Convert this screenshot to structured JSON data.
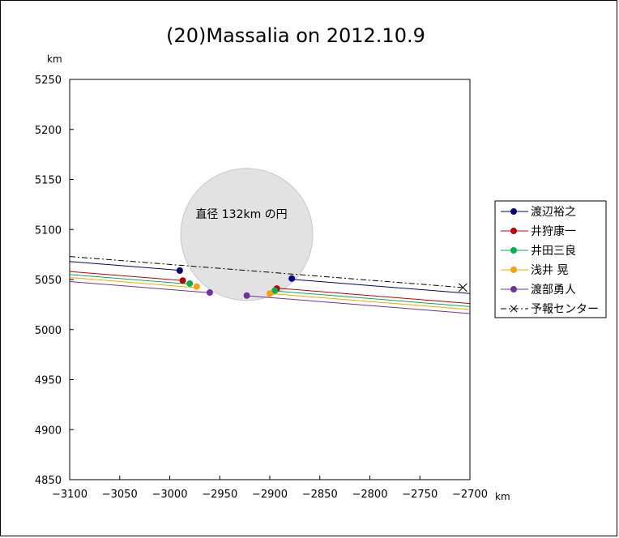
{
  "chart_data": {
    "type": "line",
    "title": "(20)Massalia on 2012.10.9",
    "xunit": "km",
    "yunit": "km",
    "xlim": [
      -3100,
      -2700
    ],
    "ylim": [
      4850,
      5250
    ],
    "xticks": [
      -3100,
      -3050,
      -3000,
      -2950,
      -2900,
      -2850,
      -2800,
      -2750,
      -2700
    ],
    "yticks": [
      4850,
      4900,
      4950,
      5000,
      5050,
      5100,
      5150,
      5200,
      5250
    ],
    "xtick_labels": [
      "−3100",
      "−3050",
      "−3000",
      "−2950",
      "−2900",
      "−2850",
      "−2800",
      "−2750",
      "−2700"
    ],
    "ytick_labels": [
      "4850",
      "4900",
      "4950",
      "5000",
      "5050",
      "5100",
      "5150",
      "5200",
      "5250"
    ],
    "grid": false,
    "legend_position": "right",
    "circle": {
      "label": "直径 132km の円",
      "center": [
        -2923,
        5095
      ],
      "diameter": 132,
      "fill": "#e2e2e2",
      "stroke": "#c8c8c8"
    },
    "series": [
      {
        "name": "渡辺裕之",
        "color": "#000080",
        "line": [
          [
            -3100,
            5068
          ],
          [
            -2700,
            5036
          ]
        ],
        "points": [
          [
            -2990,
            5059
          ],
          [
            -2878,
            5051
          ]
        ],
        "marker": "circle",
        "gap": true
      },
      {
        "name": "井狩康一",
        "color": "#c00000",
        "line": [
          [
            -3100,
            5058
          ],
          [
            -2700,
            5026
          ]
        ],
        "points": [
          [
            -2987,
            5049
          ],
          [
            -2893,
            5041
          ]
        ],
        "marker": "circle",
        "gap": true
      },
      {
        "name": "井田三良",
        "color": "#00b050",
        "line": [
          [
            -3100,
            5055
          ],
          [
            -2700,
            5023
          ]
        ],
        "points": [
          [
            -2980,
            5046
          ],
          [
            -2895,
            5039
          ]
        ],
        "marker": "circle",
        "gap": true
      },
      {
        "name": "浅井 晃",
        "color": "#ffa000",
        "line": [
          [
            -3100,
            5052
          ],
          [
            -2700,
            5020
          ]
        ],
        "points": [
          [
            -2973,
            5043
          ],
          [
            -2900,
            5036
          ]
        ],
        "marker": "circle",
        "gap": true
      },
      {
        "name": "渡部勇人",
        "color": "#7030a0",
        "line": [
          [
            -3100,
            5048
          ],
          [
            -2700,
            5016
          ]
        ],
        "points": [
          [
            -2960,
            5037
          ],
          [
            -2923,
            5034
          ]
        ],
        "marker": "circle",
        "gap": true
      },
      {
        "name": "予報センター",
        "color": "#000000",
        "line": [
          [
            -3100,
            5073
          ],
          [
            -2707,
            5042
          ]
        ],
        "points": [
          [
            -2707,
            5042
          ]
        ],
        "marker": "x",
        "dashed": true
      }
    ]
  }
}
